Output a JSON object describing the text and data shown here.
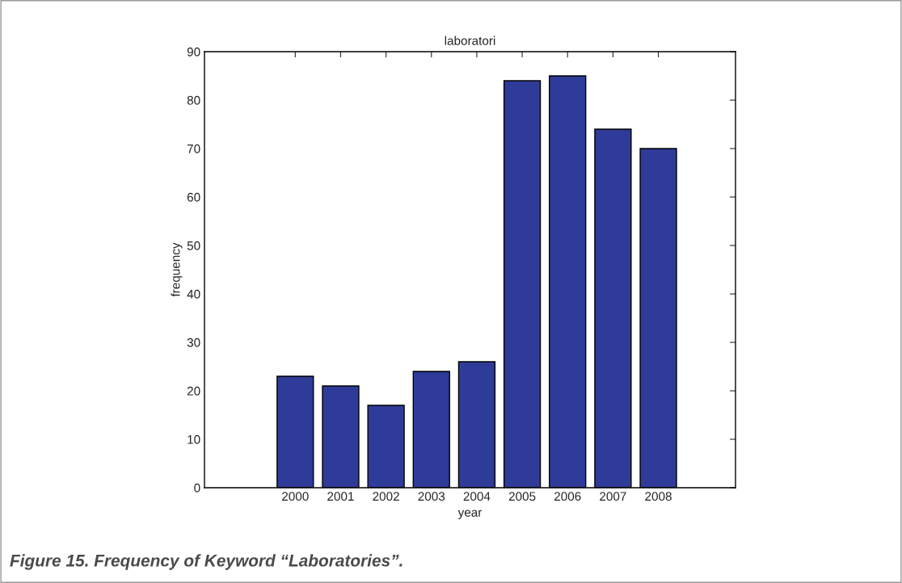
{
  "chart_data": {
    "type": "bar",
    "title": "laboratori",
    "xlabel": "year",
    "ylabel": "frequency",
    "categories": [
      "2000",
      "2001",
      "2002",
      "2003",
      "2004",
      "2005",
      "2006",
      "2007",
      "2008"
    ],
    "values": [
      23,
      21,
      17,
      24,
      26,
      84,
      85,
      74,
      70
    ],
    "color": "#2e3b98",
    "ylim": [
      0,
      90
    ],
    "yticks": [
      0,
      10,
      20,
      30,
      40,
      50,
      60,
      70,
      80,
      90
    ],
    "grid": false,
    "legend": false,
    "annotations": [
      "Figure 15. Frequency of Keyword “Laboratories”."
    ]
  }
}
